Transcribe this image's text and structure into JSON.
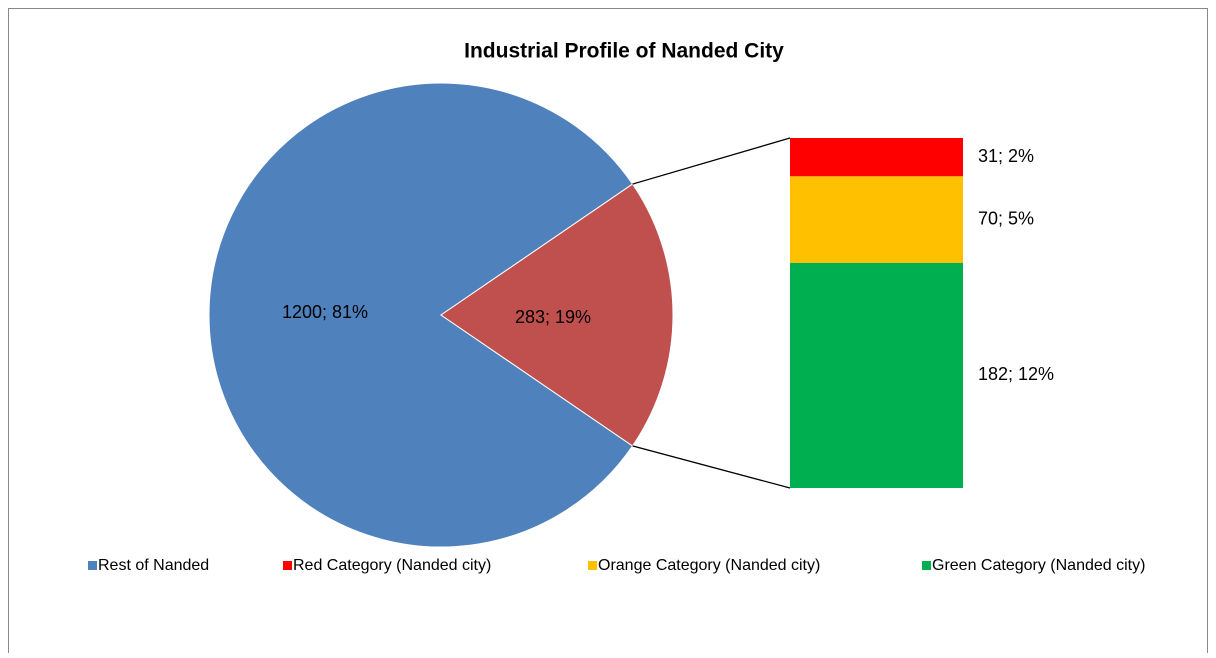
{
  "chart_data": {
    "type": "pie",
    "title": "Industrial Profile of Nanded City",
    "categories": [
      "Rest of Nanded",
      "Red Category (Nanded city)",
      "Orange Category (Nanded city)",
      "Green Category (Nanded city)"
    ],
    "values": [
      1200,
      31,
      70,
      182
    ],
    "value_labels": [
      "1200; 81%",
      "31; 2%",
      "70; 5%",
      "182; 12%"
    ],
    "colors": [
      "#4f81bd",
      "#ff0000",
      "#ffc000",
      "#00b050"
    ],
    "other": {
      "value": 283,
      "label": "283; 19%",
      "color": "#c0504d"
    },
    "legend": "bottom"
  }
}
